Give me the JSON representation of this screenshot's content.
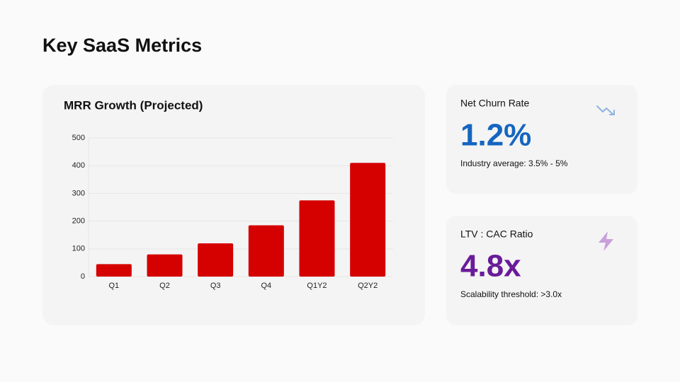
{
  "title": "Key SaaS Metrics",
  "chart_data": {
    "type": "bar",
    "title": "MRR Growth (Projected)",
    "categories": [
      "Q1",
      "Q2",
      "Q3",
      "Q4",
      "Q1Y2",
      "Q2Y2"
    ],
    "values": [
      45,
      80,
      120,
      185,
      275,
      410
    ],
    "color": "#d50000",
    "ylim": [
      0,
      500
    ],
    "yticks": [
      0,
      100,
      200,
      300,
      400,
      500
    ],
    "grid": true
  },
  "cards": [
    {
      "label": "Net Churn Rate",
      "value": "1.2%",
      "note": "Industry average: 3.5% - 5%",
      "color": "#1565c0"
    },
    {
      "label": "LTV : CAC Ratio",
      "value": "4.8x",
      "note": "Scalability threshold: >3.0x",
      "color": "#6a1b9a"
    }
  ]
}
